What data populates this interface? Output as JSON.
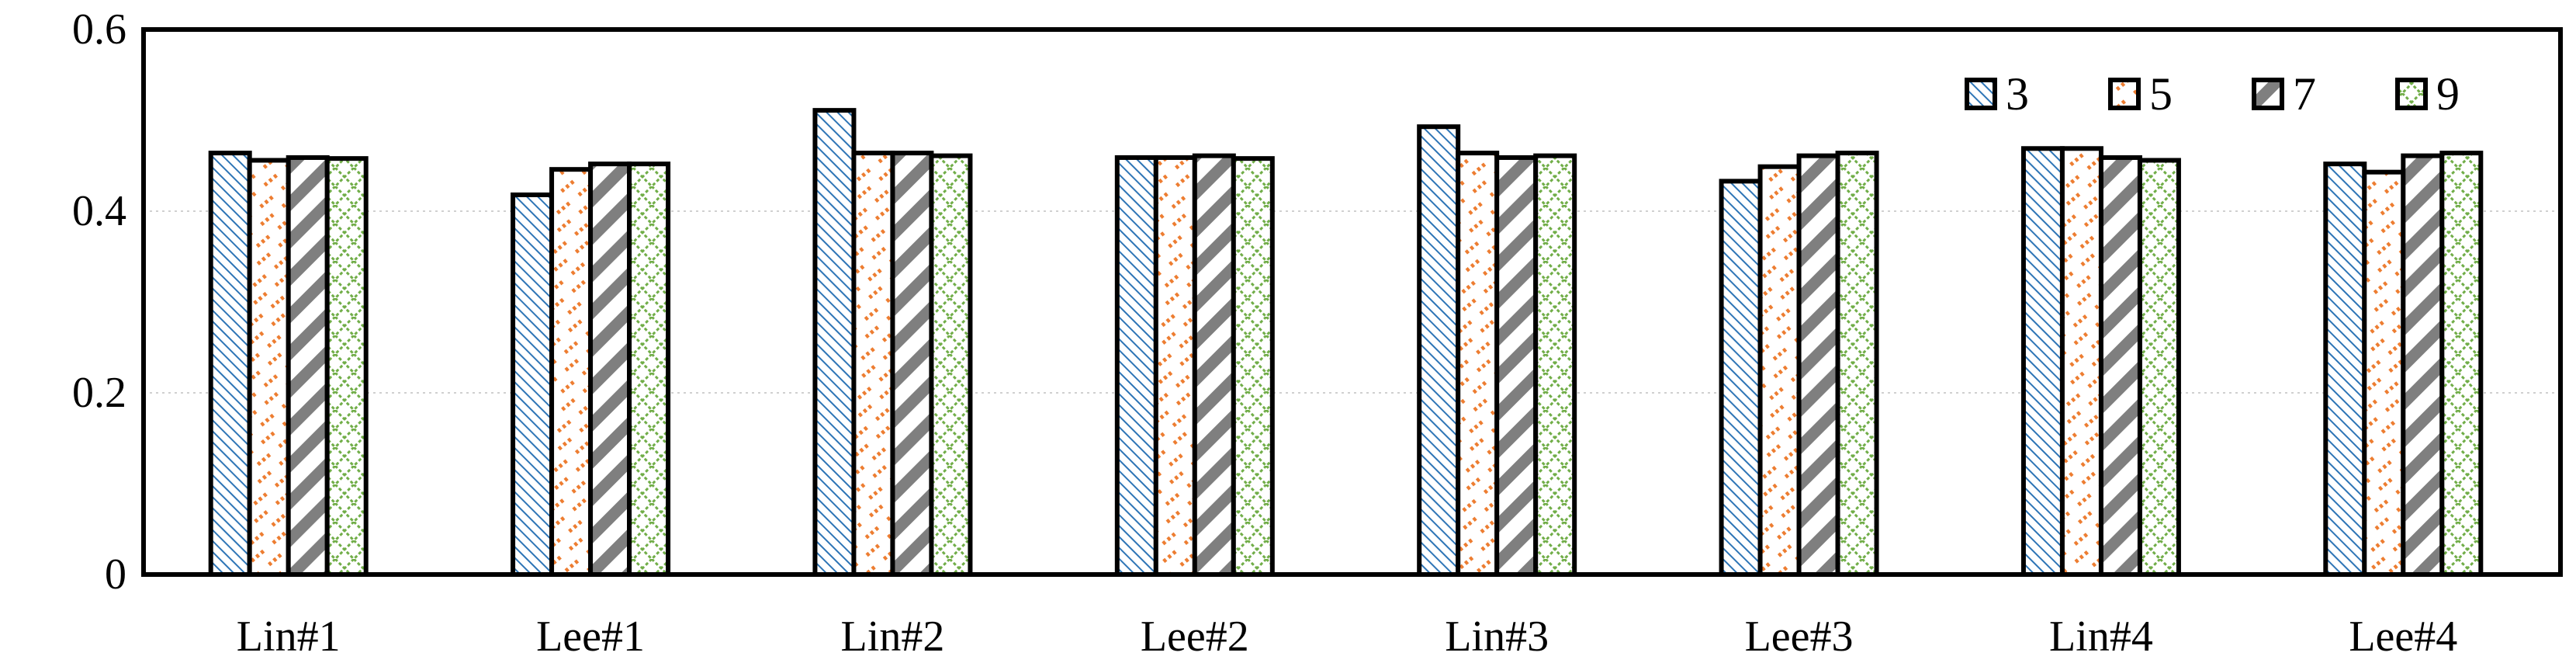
{
  "chart_data": {
    "type": "bar",
    "title": "",
    "xlabel": "",
    "ylabel": "",
    "categories": [
      "Lin#1",
      "Lee#1",
      "Lin#2",
      "Lee#2",
      "Lin#3",
      "Lee#3",
      "Lin#4",
      "Lee#4"
    ],
    "ylim": [
      0,
      0.6
    ],
    "yticks": [
      "0",
      "0.2",
      "0.4",
      "0.6"
    ],
    "grid": true,
    "legend_position": "top-right",
    "series": [
      {
        "name": "3",
        "pattern": "fine-diagonal-stripes",
        "color": "#2e75b6",
        "values": [
          0.464,
          0.418,
          0.511,
          0.459,
          0.493,
          0.433,
          0.469,
          0.452
        ]
      },
      {
        "name": "5",
        "pattern": "dotted-dashes",
        "color": "#ed7d31",
        "values": [
          0.456,
          0.446,
          0.464,
          0.459,
          0.464,
          0.449,
          0.469,
          0.443
        ]
      },
      {
        "name": "7",
        "pattern": "wide-diagonal-stripes",
        "color": "#7f7f7f",
        "values": [
          0.459,
          0.452,
          0.464,
          0.461,
          0.459,
          0.461,
          0.459,
          0.461
        ]
      },
      {
        "name": "9",
        "pattern": "crosshatch",
        "color": "#70ad47",
        "values": [
          0.458,
          0.452,
          0.461,
          0.458,
          0.461,
          0.464,
          0.456,
          0.464
        ]
      }
    ]
  }
}
